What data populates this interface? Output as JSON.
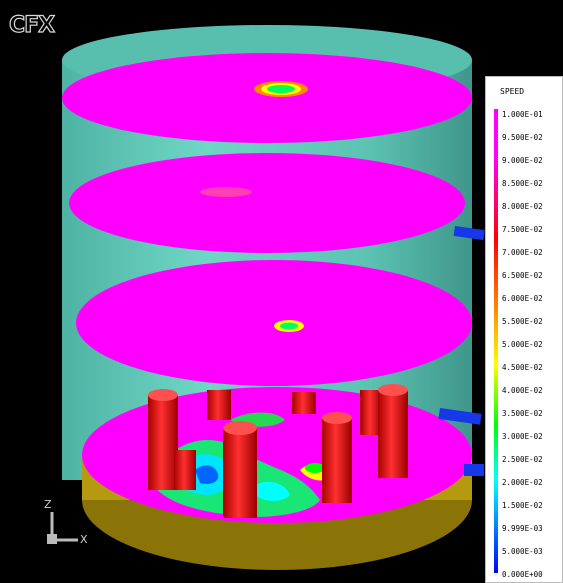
{
  "app": {
    "logo_text": "CFX"
  },
  "legend": {
    "title": "SPEED",
    "labels": [
      "1.000E-01",
      "9.500E-02",
      "9.000E-02",
      "8.500E-02",
      "8.000E-02",
      "7.500E-02",
      "7.000E-02",
      "6.500E-02",
      "6.000E-02",
      "5.500E-02",
      "5.000E-02",
      "4.500E-02",
      "4.000E-02",
      "3.500E-02",
      "3.000E-02",
      "2.500E-02",
      "2.000E-02",
      "1.500E-02",
      "9.999E-03",
      "5.000E-03",
      "0.000E+00"
    ],
    "colors": {
      "max": "#ff00ff",
      "high": "#ff0000",
      "mid": "#ffff00",
      "low_mid": "#00ff00",
      "low": "#00ffff",
      "min": "#0000ff"
    }
  },
  "axes": {
    "z_label": "Z",
    "x_label": "X"
  },
  "scene": {
    "background_color": "#000000",
    "tank_color": "#5fc9b8",
    "plate_color": "#ff00ff",
    "column_color": "#e8121b",
    "base_color": "#b59a10",
    "pipe_color": "#1638e8"
  }
}
